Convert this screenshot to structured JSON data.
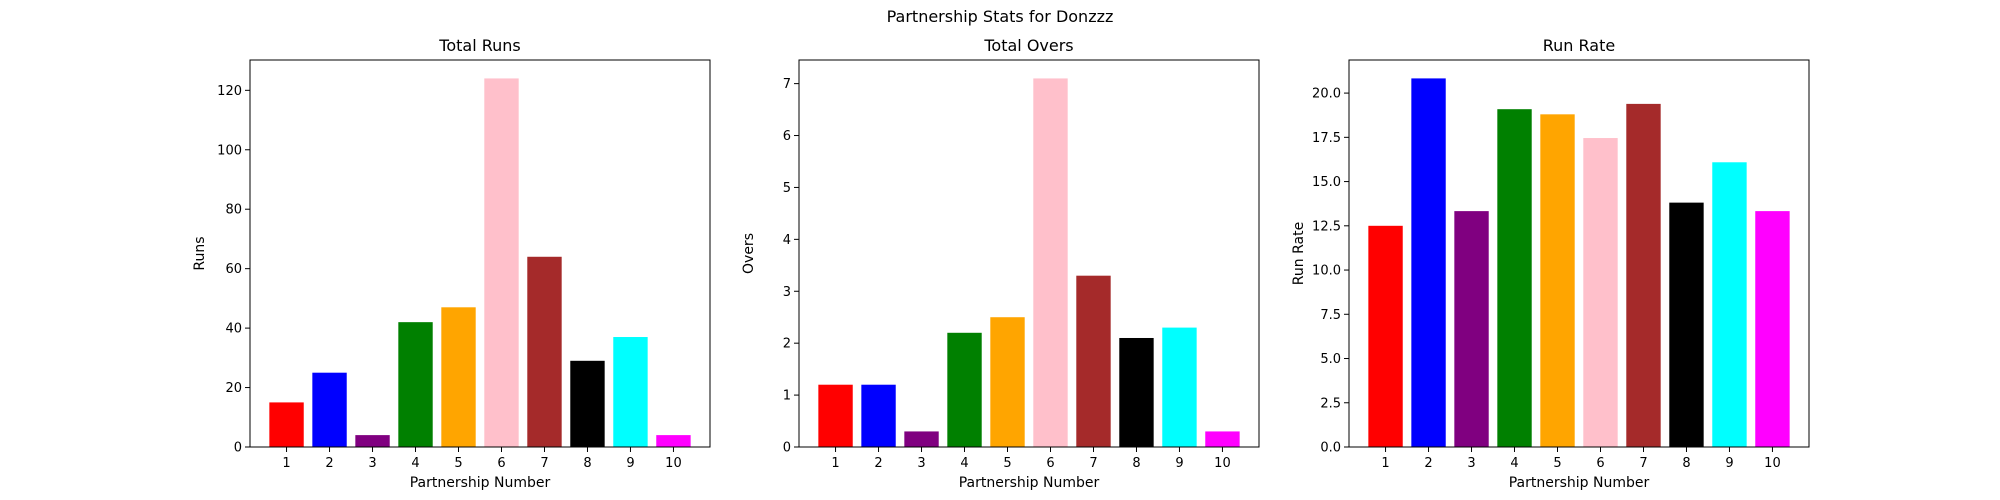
{
  "figure_title": "Partnership Stats for Donzzz",
  "bar_colors": [
    "#ff0000",
    "#0000ff",
    "#800080",
    "#008000",
    "#ffa500",
    "#ffc0cb",
    "#a52a2a",
    "#000000",
    "#00ffff",
    "#ff00ff"
  ],
  "chart_data": [
    {
      "type": "bar",
      "title": "Total Runs",
      "xlabel": "Partnership Number",
      "ylabel": "Runs",
      "categories": [
        "1",
        "2",
        "3",
        "4",
        "5",
        "6",
        "7",
        "8",
        "9",
        "10"
      ],
      "values": [
        15,
        25,
        4,
        42,
        47,
        124,
        64,
        29,
        37,
        4
      ],
      "ylim": [
        0,
        130.2
      ],
      "yticks": [
        0,
        20,
        40,
        60,
        80,
        100,
        120
      ],
      "ytick_labels": [
        "0",
        "20",
        "40",
        "60",
        "80",
        "100",
        "120"
      ]
    },
    {
      "type": "bar",
      "title": "Total Overs",
      "xlabel": "Partnership Number",
      "ylabel": "Overs",
      "categories": [
        "1",
        "2",
        "3",
        "4",
        "5",
        "6",
        "7",
        "8",
        "9",
        "10"
      ],
      "values": [
        1.2,
        1.2,
        0.3,
        2.2,
        2.5,
        7.1,
        3.3,
        2.1,
        2.3,
        0.3
      ],
      "ylim": [
        0,
        7.455
      ],
      "yticks": [
        0,
        1,
        2,
        3,
        4,
        5,
        6,
        7
      ],
      "ytick_labels": [
        "0",
        "1",
        "2",
        "3",
        "4",
        "5",
        "6",
        "7"
      ]
    },
    {
      "type": "bar",
      "title": "Run Rate",
      "xlabel": "Partnership Number",
      "ylabel": "Run Rate",
      "categories": [
        "1",
        "2",
        "3",
        "4",
        "5",
        "6",
        "7",
        "8",
        "9",
        "10"
      ],
      "values": [
        12.5,
        20.83,
        13.33,
        19.09,
        18.8,
        17.46,
        19.39,
        13.81,
        16.09,
        13.33
      ],
      "ylim": [
        0,
        21.87
      ],
      "yticks": [
        0,
        2.5,
        5,
        7.5,
        10,
        12.5,
        15,
        17.5,
        20
      ],
      "ytick_labels": [
        "0.0",
        "2.5",
        "5.0",
        "7.5",
        "10.0",
        "12.5",
        "15.0",
        "17.5",
        "20.0"
      ]
    }
  ]
}
